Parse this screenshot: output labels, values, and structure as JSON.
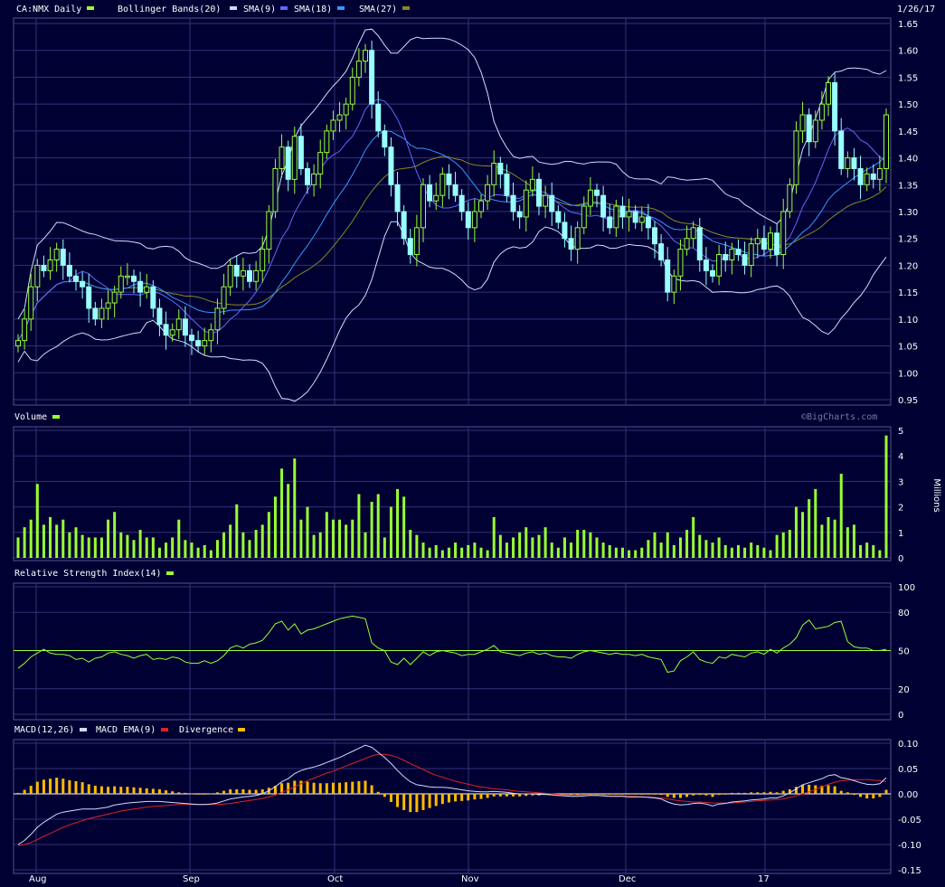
{
  "header": {
    "symbol_label": "CA:NMX Daily",
    "bb_label": "Bollinger Bands(20)",
    "sma9_label": "SMA(9)",
    "sma18_label": "SMA(18)",
    "sma27_label": "SMA(27)",
    "date": "1/26/17"
  },
  "colors": {
    "background": "#000033",
    "grid": "#333377",
    "candle_up": "#99ff33",
    "candle_down": "#99ffff",
    "bollinger": "#ccddff",
    "sma9": "#6666ff",
    "sma18": "#3399ff",
    "sma27": "#888822",
    "volume": "#99ff33",
    "rsi": "#99ff33",
    "macd": "#ccddff",
    "macd_ema": "#dd2222",
    "divergence": "#ffbb00"
  },
  "watermark": "©BigCharts.com",
  "chart_data": [
    {
      "type": "candlestick",
      "name": "price",
      "x_ticks": [
        "Aug",
        "Sep",
        "Oct",
        "Nov",
        "Dec",
        "17"
      ],
      "ylim": [
        0.95,
        1.65
      ],
      "y_ticks": [
        "1.65",
        "1.60",
        "1.55",
        "1.50",
        "1.45",
        "1.40",
        "1.35",
        "1.30",
        "1.25",
        "1.20",
        "1.15",
        "1.10",
        "1.05",
        "1.00",
        "0.95"
      ],
      "close": [
        1.06,
        1.1,
        1.16,
        1.2,
        1.19,
        1.21,
        1.23,
        1.2,
        1.18,
        1.17,
        1.16,
        1.12,
        1.1,
        1.12,
        1.13,
        1.15,
        1.18,
        1.18,
        1.17,
        1.15,
        1.16,
        1.12,
        1.09,
        1.07,
        1.08,
        1.1,
        1.07,
        1.06,
        1.05,
        1.06,
        1.08,
        1.12,
        1.16,
        1.2,
        1.18,
        1.19,
        1.17,
        1.19,
        1.23,
        1.3,
        1.38,
        1.42,
        1.36,
        1.44,
        1.38,
        1.35,
        1.37,
        1.41,
        1.45,
        1.47,
        1.48,
        1.5,
        1.55,
        1.58,
        1.6,
        1.5,
        1.45,
        1.42,
        1.35,
        1.3,
        1.25,
        1.22,
        1.27,
        1.35,
        1.32,
        1.33,
        1.37,
        1.35,
        1.33,
        1.3,
        1.27,
        1.3,
        1.32,
        1.35,
        1.39,
        1.37,
        1.33,
        1.3,
        1.29,
        1.34,
        1.36,
        1.31,
        1.33,
        1.3,
        1.28,
        1.25,
        1.23,
        1.27,
        1.31,
        1.34,
        1.33,
        1.29,
        1.27,
        1.31,
        1.29,
        1.3,
        1.28,
        1.29,
        1.27,
        1.24,
        1.21,
        1.15,
        1.18,
        1.23,
        1.25,
        1.27,
        1.21,
        1.19,
        1.18,
        1.22,
        1.21,
        1.23,
        1.22,
        1.2,
        1.24,
        1.25,
        1.23,
        1.26,
        1.22,
        1.3,
        1.35,
        1.45,
        1.48,
        1.43,
        1.47,
        1.5,
        1.54,
        1.45,
        1.38,
        1.4,
        1.38,
        1.35,
        1.37,
        1.36,
        1.38,
        1.48
      ],
      "series": [
        {
          "name": "Bollinger Bands(20)"
        },
        {
          "name": "SMA(9)"
        },
        {
          "name": "SMA(18)"
        },
        {
          "name": "SMA(27)"
        }
      ]
    },
    {
      "type": "bar",
      "name": "volume",
      "label": "Volume",
      "unit_label": "Millions",
      "ylim": [
        0,
        5
      ],
      "y_ticks": [
        "5",
        "4",
        "3",
        "2",
        "1",
        "0"
      ],
      "values": [
        0.8,
        1.2,
        1.5,
        2.9,
        1.3,
        1.6,
        1.3,
        1.5,
        1.0,
        1.2,
        0.9,
        0.8,
        0.8,
        0.8,
        1.5,
        1.8,
        1.0,
        0.9,
        0.7,
        1.1,
        0.8,
        0.8,
        0.4,
        0.6,
        0.8,
        1.5,
        0.7,
        0.6,
        0.4,
        0.5,
        0.3,
        0.7,
        1.0,
        1.3,
        2.1,
        1.0,
        0.7,
        1.1,
        1.3,
        1.8,
        2.4,
        3.5,
        2.9,
        3.9,
        1.5,
        2.0,
        0.9,
        1.0,
        1.8,
        1.5,
        1.5,
        1.3,
        1.5,
        2.5,
        1.0,
        2.2,
        2.5,
        0.8,
        2.0,
        2.7,
        2.4,
        1.1,
        0.9,
        0.6,
        0.4,
        0.5,
        0.3,
        0.4,
        0.6,
        0.4,
        0.5,
        0.6,
        0.4,
        0.3,
        1.6,
        0.9,
        0.6,
        0.8,
        1.0,
        1.2,
        0.8,
        0.9,
        1.2,
        0.6,
        0.4,
        0.8,
        0.6,
        1.1,
        1.1,
        1.0,
        0.8,
        0.6,
        0.5,
        0.4,
        0.4,
        0.3,
        0.3,
        0.4,
        0.7,
        1.0,
        0.6,
        1.0,
        0.5,
        0.8,
        1.1,
        1.6,
        0.9,
        0.7,
        0.6,
        0.8,
        0.5,
        0.4,
        0.5,
        0.4,
        0.6,
        0.5,
        0.4,
        0.3,
        0.9,
        1.0,
        1.1,
        2.0,
        1.8,
        2.3,
        2.7,
        1.3,
        1.6,
        1.5,
        3.3,
        1.2,
        1.3,
        0.5,
        0.6,
        0.5,
        0.3,
        4.8
      ]
    },
    {
      "type": "line",
      "name": "rsi",
      "label": "Relative Strength Index(14)",
      "ylim": [
        0,
        100
      ],
      "y_ticks": [
        "100",
        "80",
        "50",
        "20",
        "0"
      ],
      "reference_line": 50,
      "values": [
        36,
        40,
        45,
        48,
        51,
        48,
        47,
        47,
        46,
        43,
        44,
        41,
        44,
        45,
        48,
        49,
        47,
        46,
        44,
        46,
        47,
        43,
        44,
        43,
        45,
        44,
        41,
        40,
        40,
        42,
        40,
        42,
        46,
        52,
        54,
        52,
        55,
        56,
        58,
        64,
        71,
        73,
        66,
        71,
        63,
        66,
        67,
        69,
        71,
        73,
        75,
        76,
        77,
        76,
        75,
        56,
        52,
        50,
        41,
        39,
        44,
        39,
        44,
        49,
        46,
        49,
        50,
        49,
        48,
        46,
        47,
        47,
        49,
        51,
        54,
        49,
        48,
        47,
        46,
        48,
        49,
        47,
        48,
        46,
        45,
        45,
        44,
        47,
        49,
        50,
        49,
        48,
        47,
        48,
        47,
        47,
        46,
        47,
        45,
        44,
        43,
        33,
        34,
        42,
        45,
        49,
        43,
        41,
        40,
        45,
        44,
        47,
        46,
        45,
        48,
        49,
        47,
        51,
        48,
        52,
        55,
        60,
        70,
        74,
        67,
        68,
        69,
        72,
        73,
        57,
        53,
        52,
        52,
        50,
        50,
        51,
        54,
        62
      ]
    },
    {
      "type": "line",
      "name": "macd",
      "label": "MACD(12,26)",
      "ema_label": "MACD EMA(9)",
      "divergence_label": "Divergence",
      "ylim": [
        -0.15,
        0.1
      ],
      "y_ticks": [
        "0.10",
        "0.05",
        "0.00",
        "-0.05",
        "-0.10",
        "-0.15"
      ],
      "macd": [
        -0.1,
        -0.092,
        -0.08,
        -0.066,
        -0.056,
        -0.048,
        -0.04,
        -0.036,
        -0.034,
        -0.032,
        -0.03,
        -0.03,
        -0.03,
        -0.028,
        -0.026,
        -0.022,
        -0.02,
        -0.018,
        -0.017,
        -0.016,
        -0.015,
        -0.015,
        -0.015,
        -0.016,
        -0.017,
        -0.018,
        -0.019,
        -0.02,
        -0.021,
        -0.021,
        -0.02,
        -0.018,
        -0.014,
        -0.01,
        -0.008,
        -0.006,
        -0.005,
        -0.003,
        0.0,
        0.006,
        0.014,
        0.024,
        0.03,
        0.04,
        0.046,
        0.05,
        0.053,
        0.057,
        0.062,
        0.067,
        0.072,
        0.078,
        0.084,
        0.09,
        0.096,
        0.092,
        0.082,
        0.072,
        0.06,
        0.046,
        0.034,
        0.024,
        0.018,
        0.016,
        0.014,
        0.013,
        0.013,
        0.012,
        0.01,
        0.008,
        0.006,
        0.005,
        0.004,
        0.004,
        0.005,
        0.004,
        0.003,
        0.001,
        0.0,
        0.0,
        0.0,
        -0.001,
        -0.001,
        -0.002,
        -0.003,
        -0.004,
        -0.005,
        -0.005,
        -0.004,
        -0.003,
        -0.003,
        -0.004,
        -0.005,
        -0.005,
        -0.005,
        -0.006,
        -0.006,
        -0.006,
        -0.007,
        -0.008,
        -0.01,
        -0.016,
        -0.02,
        -0.022,
        -0.021,
        -0.019,
        -0.018,
        -0.02,
        -0.024,
        -0.02,
        -0.019,
        -0.016,
        -0.015,
        -0.014,
        -0.012,
        -0.011,
        -0.01,
        -0.008,
        -0.008,
        -0.004,
        0.002,
        0.01,
        0.018,
        0.022,
        0.026,
        0.03,
        0.036,
        0.038,
        0.032,
        0.03,
        0.026,
        0.022,
        0.019,
        0.018,
        0.02,
        0.032
      ],
      "ema": [
        -0.102,
        -0.1,
        -0.096,
        -0.09,
        -0.084,
        -0.078,
        -0.072,
        -0.066,
        -0.061,
        -0.057,
        -0.053,
        -0.049,
        -0.046,
        -0.043,
        -0.04,
        -0.037,
        -0.034,
        -0.032,
        -0.03,
        -0.028,
        -0.026,
        -0.025,
        -0.024,
        -0.023,
        -0.022,
        -0.021,
        -0.021,
        -0.021,
        -0.021,
        -0.021,
        -0.021,
        -0.021,
        -0.02,
        -0.019,
        -0.017,
        -0.015,
        -0.013,
        -0.011,
        -0.009,
        -0.006,
        -0.002,
        0.003,
        0.008,
        0.014,
        0.02,
        0.026,
        0.031,
        0.036,
        0.041,
        0.045,
        0.05,
        0.055,
        0.06,
        0.065,
        0.07,
        0.075,
        0.078,
        0.078,
        0.076,
        0.072,
        0.066,
        0.06,
        0.054,
        0.048,
        0.042,
        0.037,
        0.033,
        0.029,
        0.025,
        0.022,
        0.019,
        0.016,
        0.014,
        0.012,
        0.01,
        0.009,
        0.008,
        0.006,
        0.005,
        0.004,
        0.003,
        0.002,
        0.001,
        0.0,
        -0.001,
        -0.002,
        -0.003,
        -0.003,
        -0.003,
        -0.003,
        -0.003,
        -0.003,
        -0.004,
        -0.004,
        -0.004,
        -0.005,
        -0.005,
        -0.006,
        -0.006,
        -0.007,
        -0.008,
        -0.01,
        -0.012,
        -0.014,
        -0.015,
        -0.016,
        -0.016,
        -0.017,
        -0.018,
        -0.018,
        -0.018,
        -0.018,
        -0.017,
        -0.016,
        -0.015,
        -0.014,
        -0.013,
        -0.012,
        -0.011,
        -0.01,
        -0.007,
        -0.004,
        0.0,
        0.004,
        0.009,
        0.014,
        0.019,
        0.023,
        0.026,
        0.027,
        0.028,
        0.028,
        0.028,
        0.027,
        0.026,
        0.024
      ]
    }
  ]
}
